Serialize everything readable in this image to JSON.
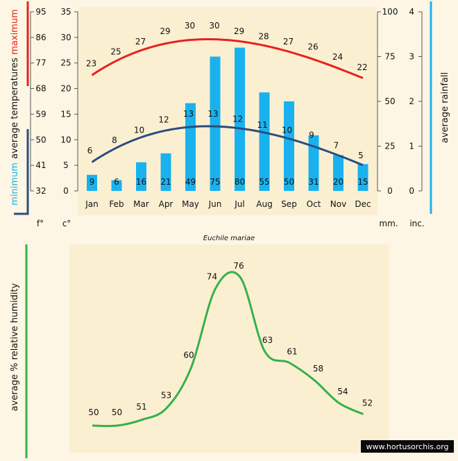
{
  "colors": {
    "max_line": "#e8211d",
    "min_line": "#2a4d7e",
    "rain_bar": "#19b2ee",
    "humidity_line": "#34b14a",
    "bracket_red": "#e8211d",
    "bracket_navy": "#2a4d7e",
    "bracket_blue": "#19b2ee",
    "bracket_green": "#34b14a"
  },
  "chart_data": [
    {
      "type": "bar+line",
      "title": "",
      "categories": [
        "Jan",
        "Feb",
        "Mar",
        "Apr",
        "May",
        "Jun",
        "Jul",
        "Aug",
        "Sep",
        "Oct",
        "Nov",
        "Dec"
      ],
      "series": [
        {
          "name": "maximum",
          "kind": "line",
          "axis": "temp_c",
          "values": [
            23,
            25,
            27,
            29,
            30,
            30,
            29,
            28,
            27,
            26,
            24,
            22
          ]
        },
        {
          "name": "minimum",
          "kind": "line",
          "axis": "temp_c",
          "values": [
            6,
            8,
            10,
            12,
            13,
            13,
            12,
            11,
            10,
            9,
            7,
            5
          ]
        },
        {
          "name": "average rainfall",
          "kind": "bar",
          "axis": "rain_mm",
          "values": [
            9,
            6,
            16,
            21,
            49,
            75,
            80,
            55,
            50,
            31,
            20,
            15
          ]
        }
      ],
      "left_axis_f": {
        "ticks": [
          32,
          41,
          50,
          59,
          68,
          77,
          86,
          95
        ],
        "unit_label": "f°"
      },
      "left_axis_c": {
        "ylim": [
          0,
          35
        ],
        "ticks": [
          0,
          5,
          10,
          15,
          20,
          25,
          30,
          35
        ],
        "unit_label": "c°"
      },
      "right_axis_mm": {
        "ylim": [
          0,
          100
        ],
        "ticks": [
          0,
          25,
          50,
          75,
          100
        ],
        "unit_label": "mm."
      },
      "right_axis_inch": {
        "ticks": [
          0,
          1,
          2,
          3,
          4
        ],
        "unit_label": "inc."
      },
      "labels": {
        "maximum": "maximum",
        "average_temperatures": "average  temperatures",
        "minimum": "minimum",
        "average_rainfall": "average  rainfall"
      },
      "caption": "Euchile mariae"
    },
    {
      "type": "line",
      "title": "",
      "categories": [
        "Jan",
        "Feb",
        "Mar",
        "Apr",
        "May",
        "Jun",
        "Jul",
        "Aug",
        "Sep",
        "Oct",
        "Nov",
        "Dec"
      ],
      "series": [
        {
          "name": "average % relative humidity",
          "values": [
            50,
            50,
            51,
            53,
            60,
            74,
            76,
            63,
            61,
            58,
            54,
            52
          ]
        }
      ],
      "ylabel": "average %  relative humidity"
    }
  ],
  "watermark": "www.hortusorchis.org"
}
